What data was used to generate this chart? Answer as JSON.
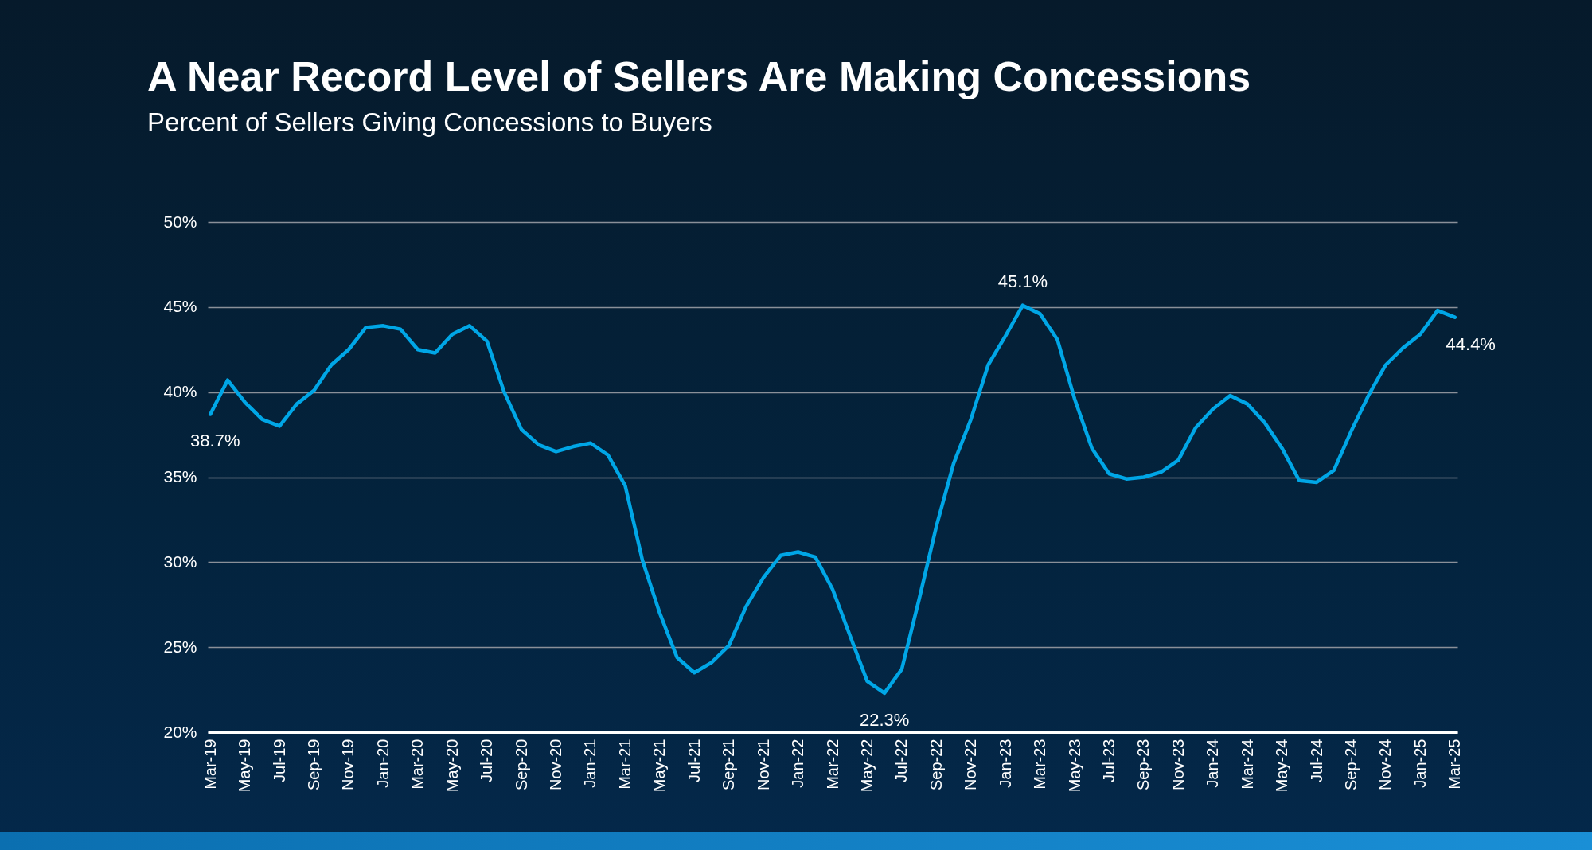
{
  "chart_data": {
    "type": "line",
    "title": "A Near Record Level of Sellers Are Making Concessions",
    "subtitle": "Percent of Sellers Giving Concessions to Buyers",
    "categories": [
      "Mar-19",
      null,
      "May-19",
      null,
      "Jul-19",
      null,
      "Sep-19",
      null,
      "Nov-19",
      null,
      "Jan-20",
      null,
      "Mar-20",
      null,
      "May-20",
      null,
      "Jul-20",
      null,
      "Sep-20",
      null,
      "Nov-20",
      null,
      "Jan-21",
      null,
      "Mar-21",
      null,
      "May-21",
      null,
      "Jul-21",
      null,
      "Sep-21",
      null,
      "Nov-21",
      null,
      "Jan-22",
      null,
      "Mar-22",
      null,
      "May-22",
      null,
      "Jul-22",
      null,
      "Sep-22",
      null,
      "Nov-22",
      null,
      "Jan-23",
      null,
      "Mar-23",
      null,
      "May-23",
      null,
      "Jul-23",
      null,
      "Sep-23",
      null,
      "Nov-23",
      null,
      "Jan-24",
      null,
      "Mar-24",
      null,
      "May-24",
      null,
      "Jul-24",
      null,
      "Sep-24",
      null,
      "Nov-24",
      null,
      "Jan-25",
      null,
      "Mar-25"
    ],
    "series": [
      {
        "color": "#00a6e6",
        "values": [
          38.7,
          40.7,
          39.4,
          38.4,
          38.0,
          39.3,
          40.1,
          41.6,
          42.5,
          43.8,
          43.9,
          43.7,
          42.5,
          42.3,
          43.4,
          43.9,
          43.0,
          40.0,
          37.8,
          36.9,
          36.5,
          36.8,
          37.0,
          36.3,
          34.5,
          30.1,
          27.0,
          24.4,
          23.5,
          24.1,
          25.1,
          27.4,
          29.1,
          30.4,
          30.6,
          30.3,
          28.4,
          25.7,
          23.0,
          22.3,
          23.7,
          27.8,
          32.1,
          35.8,
          38.4,
          41.6,
          43.3,
          45.1,
          44.6,
          43.1,
          39.6,
          36.7,
          35.2,
          34.9,
          35.0,
          35.3,
          36.0,
          37.9,
          39.0,
          39.8,
          39.3,
          38.2,
          36.7,
          34.8,
          34.7,
          35.4,
          37.7,
          39.8,
          41.6,
          42.6,
          43.4,
          44.8,
          44.4
        ],
        "value_labels": [
          "38.7%",
          null,
          null,
          null,
          null,
          null,
          null,
          null,
          null,
          null,
          null,
          null,
          null,
          null,
          null,
          null,
          null,
          null,
          null,
          null,
          null,
          null,
          null,
          null,
          null,
          null,
          null,
          null,
          null,
          null,
          null,
          null,
          null,
          null,
          null,
          null,
          null,
          null,
          null,
          "22.3%",
          null,
          null,
          null,
          null,
          null,
          null,
          null,
          "45.1%",
          null,
          null,
          null,
          null,
          null,
          null,
          null,
          null,
          null,
          null,
          null,
          null,
          null,
          null,
          null,
          null,
          null,
          null,
          null,
          null,
          null,
          null,
          null,
          null,
          "44.4%"
        ]
      }
    ],
    "ylim": [
      20,
      50
    ],
    "yticks": [
      {
        "value": 20,
        "label": "20%"
      },
      {
        "value": 25,
        "label": "25%"
      },
      {
        "value": 30,
        "label": "30%"
      },
      {
        "value": 35,
        "label": "35%"
      },
      {
        "value": 40,
        "label": "40%"
      },
      {
        "value": 45,
        "label": "45%"
      },
      {
        "value": 50,
        "label": "50%"
      }
    ],
    "grid": "y",
    "line_style": "solid"
  }
}
